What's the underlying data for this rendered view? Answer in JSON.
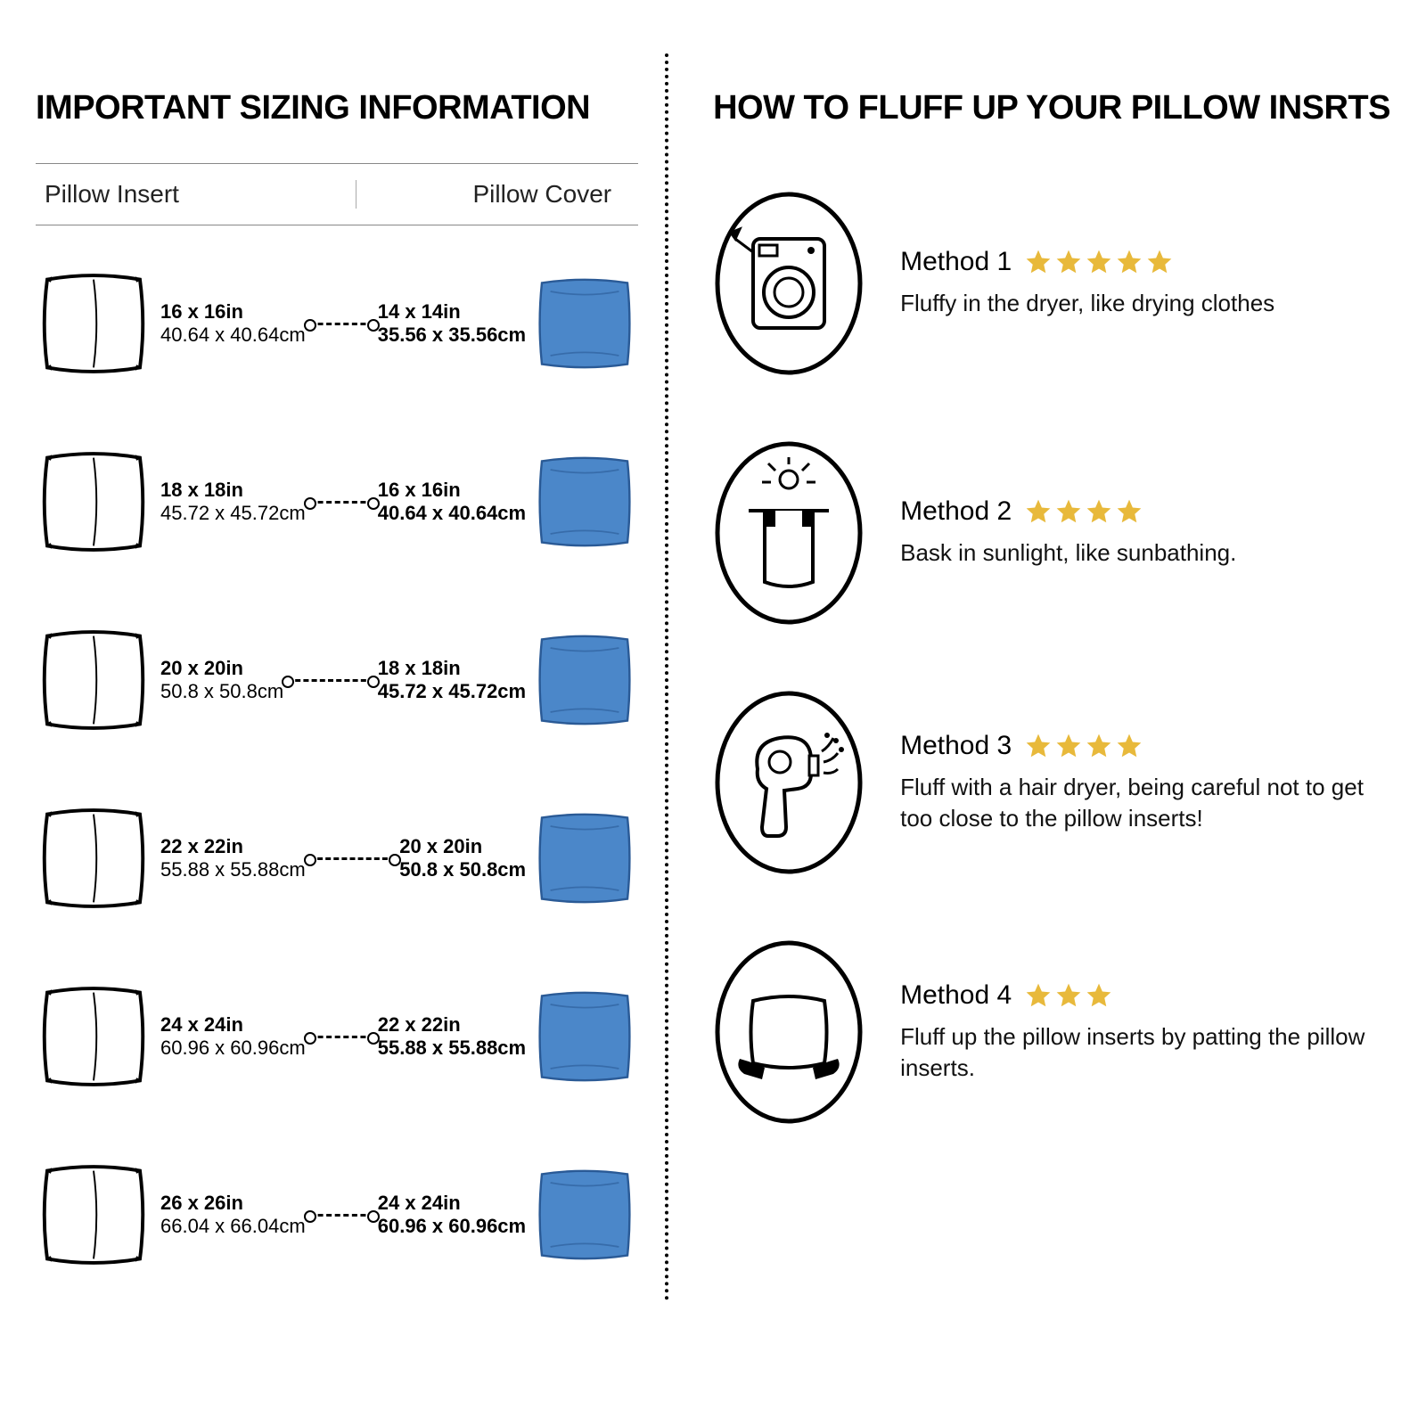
{
  "left": {
    "title": "IMPORTANT SIZING INFORMATION",
    "col1": "Pillow Insert",
    "col2": "Pillow Cover",
    "rows": [
      {
        "insert_in": "16 x 16in",
        "insert_cm": "40.64 x 40.64cm",
        "cover_in": "14 x 14in",
        "cover_cm": "35.56 x 35.56cm"
      },
      {
        "insert_in": "18 x 18in",
        "insert_cm": "45.72 x 45.72cm",
        "cover_in": "16 x 16in",
        "cover_cm": "40.64 x 40.64cm"
      },
      {
        "insert_in": "20 x 20in",
        "insert_cm": "50.8 x 50.8cm",
        "cover_in": "18 x 18in",
        "cover_cm": "45.72 x 45.72cm"
      },
      {
        "insert_in": "22 x 22in",
        "insert_cm": "55.88 x 55.88cm",
        "cover_in": "20 x 20in",
        "cover_cm": "50.8 x 50.8cm"
      },
      {
        "insert_in": "24 x 24in",
        "insert_cm": "60.96 x 60.96cm",
        "cover_in": "22 x 22in",
        "cover_cm": "55.88 x 55.88cm"
      },
      {
        "insert_in": "26 x 26in",
        "insert_cm": "66.04 x 66.04cm",
        "cover_in": "24 x 24in",
        "cover_cm": "60.96 x 60.96cm"
      }
    ]
  },
  "right": {
    "title": "HOW TO FLUFF UP YOUR PILLOW INSRTS",
    "methods": [
      {
        "label": "Method 1",
        "stars": 5,
        "desc": "Fluffy in the dryer, like drying clothes",
        "icon": "washer"
      },
      {
        "label": "Method 2",
        "stars": 4,
        "desc": "Bask in sunlight, like sunbathing.",
        "icon": "sun"
      },
      {
        "label": "Method 3",
        "stars": 4,
        "desc": "Fluff with a hair dryer, being careful not to get too close to the pillow inserts!",
        "icon": "hairdryer"
      },
      {
        "label": "Method 4",
        "stars": 3,
        "desc": "Fluff up the pillow inserts by patting the pillow inserts.",
        "icon": "pat"
      }
    ]
  },
  "colors": {
    "cover_fill": "#4b87c9",
    "star_fill": "#e8b93b",
    "text": "#000000",
    "bg": "#ffffff"
  }
}
